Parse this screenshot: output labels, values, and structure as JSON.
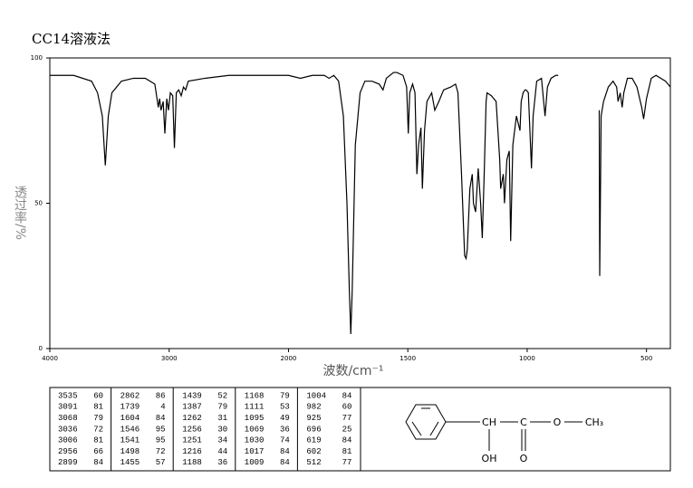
{
  "chart_data": {
    "type": "line",
    "title": "CC14溶液法",
    "xlabel": "波数/cm⁻¹",
    "ylabel": "透过率/%",
    "xlim": [
      4000,
      400
    ],
    "xticks": [
      4000,
      3000,
      2000,
      1500,
      1000,
      500
    ],
    "xscale": "tick-spaced",
    "ylim": [
      0,
      100
    ],
    "yticks": [
      0,
      50,
      100
    ],
    "grid": false,
    "series": [
      {
        "color": "#000000",
        "x": [
          4000,
          3800,
          3650,
          3600,
          3560,
          3535,
          3510,
          3480,
          3400,
          3300,
          3200,
          3120,
          3091,
          3080,
          3068,
          3050,
          3036,
          3020,
          3006,
          2990,
          2970,
          2956,
          2940,
          2920,
          2899,
          2880,
          2862,
          2840,
          2700,
          2500,
          2200,
          2000,
          1950,
          1900,
          1850,
          1830,
          1810,
          1790,
          1770,
          1755,
          1745,
          1739,
          1733,
          1720,
          1700,
          1680,
          1650,
          1620,
          1604,
          1590,
          1560,
          1546,
          1520,
          1505,
          1498,
          1492,
          1480,
          1470,
          1462,
          1455,
          1445,
          1439,
          1430,
          1420,
          1400,
          1387,
          1370,
          1350,
          1320,
          1300,
          1290,
          1275,
          1262,
          1256,
          1251,
          1240,
          1230,
          1225,
          1216,
          1205,
          1195,
          1188,
          1180,
          1172,
          1168,
          1150,
          1130,
          1115,
          1111,
          1100,
          1095,
          1085,
          1075,
          1069,
          1060,
          1045,
          1030,
          1025,
          1017,
          1009,
          1004,
          995,
          982,
          975,
          960,
          940,
          925,
          915,
          900,
          880,
          870,
          790,
          698,
          696,
          690,
          680,
          660,
          640,
          625,
          619,
          610,
          602,
          595,
          580,
          560,
          540,
          520,
          512,
          500,
          480,
          460,
          440,
          420,
          400
        ],
        "values": [
          94,
          94,
          92,
          88,
          80,
          63,
          80,
          88,
          92,
          93,
          93,
          91,
          83,
          86,
          82,
          85,
          74,
          86,
          82,
          88,
          87,
          69,
          88,
          89,
          87,
          90,
          89,
          92,
          93,
          94,
          94,
          94,
          93,
          94,
          94,
          93,
          94,
          92,
          80,
          50,
          20,
          5,
          20,
          70,
          88,
          92,
          92,
          91,
          89,
          93,
          95,
          95,
          94,
          90,
          74,
          88,
          91,
          88,
          60,
          70,
          76,
          55,
          75,
          85,
          88,
          82,
          85,
          89,
          90,
          91,
          88,
          60,
          32,
          31,
          34,
          55,
          60,
          50,
          47,
          62,
          50,
          38,
          60,
          85,
          88,
          87,
          85,
          65,
          55,
          60,
          50,
          65,
          68,
          37,
          70,
          80,
          75,
          85,
          88,
          89,
          89,
          88,
          62,
          80,
          92,
          93,
          80,
          90,
          93,
          94,
          94,
          null,
          82,
          25,
          80,
          85,
          90,
          92,
          90,
          85,
          88,
          83,
          88,
          93,
          93,
          90,
          83,
          79,
          86,
          93,
          94,
          93,
          92,
          90
        ]
      }
    ]
  },
  "peak_table": {
    "peaks": [
      [
        3535,
        60
      ],
      [
        3091,
        81
      ],
      [
        3068,
        79
      ],
      [
        3036,
        72
      ],
      [
        3006,
        81
      ],
      [
        2956,
        66
      ],
      [
        2899,
        84
      ],
      [
        2862,
        86
      ],
      [
        1739,
        4
      ],
      [
        1604,
        84
      ],
      [
        1546,
        95
      ],
      [
        1541,
        95
      ],
      [
        1498,
        72
      ],
      [
        1455,
        57
      ],
      [
        1439,
        52
      ],
      [
        1387,
        79
      ],
      [
        1262,
        31
      ],
      [
        1256,
        30
      ],
      [
        1251,
        34
      ],
      [
        1216,
        44
      ],
      [
        1188,
        36
      ],
      [
        1168,
        79
      ],
      [
        1111,
        53
      ],
      [
        1095,
        49
      ],
      [
        1069,
        36
      ],
      [
        1030,
        74
      ],
      [
        1017,
        84
      ],
      [
        1009,
        84
      ],
      [
        1004,
        84
      ],
      [
        982,
        60
      ],
      [
        925,
        77
      ],
      [
        696,
        25
      ],
      [
        619,
        84
      ],
      [
        602,
        81
      ],
      [
        512,
        77
      ]
    ]
  },
  "structure": {
    "ch": "CH",
    "c": "C",
    "o_ester": "O",
    "ch3": "CH₃",
    "oh": "OH",
    "o_carbonyl": "O"
  }
}
